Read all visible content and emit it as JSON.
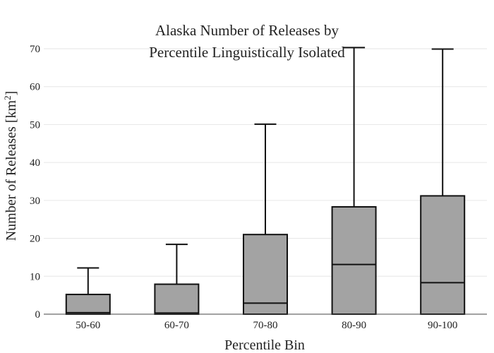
{
  "chart_data": {
    "type": "box",
    "title_lines": [
      "Alaska Number of Releases by",
      "Percentile Linguistically Isolated"
    ],
    "xlabel": "Percentile Bin",
    "ylabel": "Number of Releases  [km",
    "ylabel_sup": "2",
    "ylabel_close": "]",
    "categories": [
      "50-60",
      "60-70",
      "70-80",
      "80-90",
      "90-100"
    ],
    "boxes": [
      {
        "min": 0,
        "q1": 0,
        "median": 0.4,
        "q3": 5.2,
        "max": 12.2
      },
      {
        "min": 0,
        "q1": 0,
        "median": 0.3,
        "q3": 7.9,
        "max": 18.4
      },
      {
        "min": 0,
        "q1": 0,
        "median": 2.9,
        "q3": 21.0,
        "max": 50.1
      },
      {
        "min": 0,
        "q1": 0,
        "median": 13.1,
        "q3": 28.3,
        "max": 70.3
      },
      {
        "min": 0,
        "q1": 0,
        "median": 8.3,
        "q3": 31.2,
        "max": 69.9
      }
    ],
    "yticks": [
      0,
      10,
      20,
      30,
      40,
      50,
      60,
      70
    ],
    "ylim": [
      0,
      71
    ],
    "grid": true,
    "box_color": "#a3a3a3",
    "line_color": "#111111"
  }
}
